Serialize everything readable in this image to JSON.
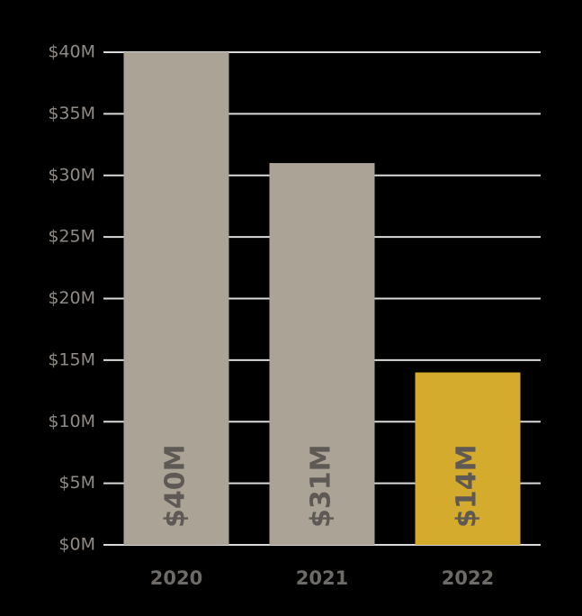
{
  "chart_data": {
    "type": "bar",
    "categories": [
      "2020",
      "2021",
      "2022"
    ],
    "values": [
      40,
      31,
      14
    ],
    "value_labels": [
      "$40M",
      "$31M",
      "$14M"
    ],
    "colors": [
      "#aca397",
      "#aca397",
      "#d4ab2c"
    ],
    "ylim": [
      0,
      40
    ],
    "yticks": [
      {
        "value": 0,
        "label": "$0M"
      },
      {
        "value": 5,
        "label": "$5M"
      },
      {
        "value": 10,
        "label": "$10M"
      },
      {
        "value": 15,
        "label": "$15M"
      },
      {
        "value": 20,
        "label": "$20M"
      },
      {
        "value": 25,
        "label": "$25M"
      },
      {
        "value": 30,
        "label": "$30M"
      },
      {
        "value": 35,
        "label": "$35M"
      },
      {
        "value": 40,
        "label": "$40M"
      }
    ],
    "grid": true
  }
}
